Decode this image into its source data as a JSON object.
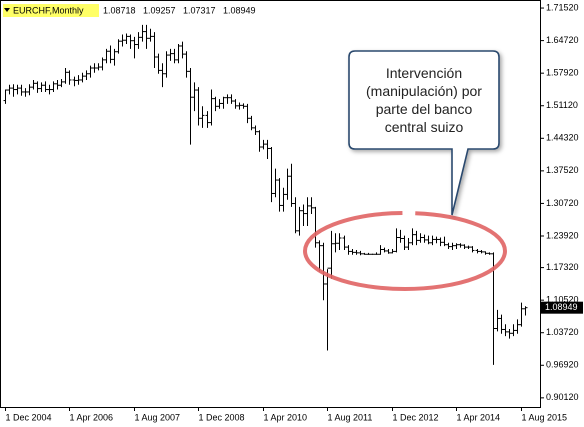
{
  "chart_data": {
    "type": "ohlc",
    "title": "EURCHF,Monthly",
    "annotation": "Intervención (manipulación) por parte del banco central suizo",
    "color": "#000000",
    "highlight_color": "#e06464",
    "categories": [
      "1 Dec 2004",
      null,
      null,
      null,
      null,
      null,
      null,
      null,
      null,
      null,
      null,
      null,
      null,
      null,
      null,
      null,
      "1 Apr 2006",
      null,
      null,
      null,
      null,
      null,
      null,
      null,
      null,
      null,
      null,
      null,
      null,
      null,
      null,
      null,
      "1 Aug 2007",
      null,
      null,
      null,
      null,
      null,
      null,
      null,
      null,
      null,
      null,
      null,
      null,
      null,
      null,
      null,
      "1 Dec 2008",
      null,
      null,
      null,
      null,
      null,
      null,
      null,
      null,
      null,
      null,
      null,
      null,
      null,
      null,
      null,
      "1 Apr 2010",
      null,
      null,
      null,
      null,
      null,
      null,
      null,
      null,
      null,
      null,
      null,
      null,
      null,
      null,
      null,
      "1 Aug 2011",
      null,
      null,
      null,
      null,
      null,
      null,
      null,
      null,
      null,
      null,
      null,
      null,
      null,
      null,
      null,
      "1 Dec 2012",
      null,
      null,
      null,
      null,
      null,
      null,
      null,
      null,
      null,
      null,
      null,
      null,
      null,
      null,
      null,
      "1 Apr 2014",
      null,
      null,
      null,
      null,
      null,
      null,
      null,
      null,
      null,
      null,
      null,
      null,
      null,
      null,
      null,
      "1 Aug 2015",
      null
    ],
    "open": [
      1.522,
      1.544,
      1.548,
      1.545,
      1.548,
      1.54,
      1.54,
      1.55,
      1.558,
      1.547,
      1.554,
      1.545,
      1.545,
      1.557,
      1.554,
      1.561,
      1.581,
      1.565,
      1.564,
      1.565,
      1.573,
      1.578,
      1.59,
      1.59,
      1.592,
      1.607,
      1.625,
      1.608,
      1.624,
      1.646,
      1.648,
      1.656,
      1.647,
      1.639,
      1.654,
      1.666,
      1.652,
      1.656,
      1.613,
      1.585,
      1.578,
      1.617,
      1.62,
      1.607,
      1.636,
      1.619,
      1.583,
      1.529,
      1.544,
      1.485,
      1.491,
      1.476,
      1.526,
      1.51,
      1.516,
      1.528,
      1.528,
      1.521,
      1.511,
      1.512,
      1.51,
      1.485,
      1.465,
      1.457,
      1.425,
      1.431,
      1.422,
      1.328,
      1.356,
      1.303,
      1.326,
      1.364,
      1.307,
      1.25,
      1.292,
      1.286,
      1.302,
      1.298,
      1.225,
      1.219,
      1.139,
      1.172,
      1.223,
      1.224,
      1.235,
      1.216,
      1.207,
      1.205,
      1.204,
      1.202,
      1.201,
      1.201,
      1.201,
      1.201,
      1.211,
      1.208,
      1.204,
      1.207,
      1.236,
      1.234,
      1.216,
      1.225,
      1.242,
      1.23,
      1.236,
      1.231,
      1.225,
      1.232,
      1.232,
      1.226,
      1.221,
      1.217,
      1.219,
      1.221,
      1.22,
      1.216,
      1.216,
      1.209,
      1.207,
      1.206,
      1.203,
      1.202,
      1.046,
      1.067,
      1.044,
      1.039,
      1.036,
      1.042,
      1.054,
      1.08718
    ],
    "high": [
      1.545,
      1.555,
      1.556,
      1.555,
      1.555,
      1.548,
      1.556,
      1.565,
      1.562,
      1.56,
      1.562,
      1.555,
      1.562,
      1.565,
      1.567,
      1.59,
      1.585,
      1.572,
      1.575,
      1.58,
      1.585,
      1.595,
      1.6,
      1.6,
      1.612,
      1.63,
      1.637,
      1.63,
      1.65,
      1.66,
      1.662,
      1.66,
      1.655,
      1.665,
      1.68,
      1.68,
      1.672,
      1.665,
      1.62,
      1.6,
      1.625,
      1.63,
      1.63,
      1.64,
      1.645,
      1.625,
      1.59,
      1.56,
      1.55,
      1.51,
      1.5,
      1.545,
      1.53,
      1.525,
      1.53,
      1.535,
      1.535,
      1.525,
      1.518,
      1.516,
      1.515,
      1.49,
      1.47,
      1.46,
      1.44,
      1.44,
      1.425,
      1.38,
      1.36,
      1.34,
      1.38,
      1.39,
      1.32,
      1.3,
      1.305,
      1.32,
      1.32,
      1.3,
      1.23,
      1.225,
      1.17,
      1.25,
      1.245,
      1.245,
      1.24,
      1.22,
      1.212,
      1.21,
      1.208,
      1.204,
      1.204,
      1.202,
      1.205,
      1.22,
      1.215,
      1.212,
      1.212,
      1.255,
      1.252,
      1.24,
      1.235,
      1.255,
      1.25,
      1.245,
      1.242,
      1.24,
      1.24,
      1.238,
      1.236,
      1.238,
      1.225,
      1.225,
      1.224,
      1.224,
      1.222,
      1.219,
      1.218,
      1.212,
      1.21,
      1.207,
      1.205,
      1.205,
      1.085,
      1.075,
      1.055,
      1.045,
      1.055,
      1.065,
      1.1,
      1.09257
    ],
    "low": [
      1.515,
      1.535,
      1.53,
      1.535,
      1.532,
      1.53,
      1.533,
      1.545,
      1.538,
      1.54,
      1.54,
      1.535,
      1.54,
      1.545,
      1.55,
      1.557,
      1.555,
      1.552,
      1.555,
      1.56,
      1.565,
      1.57,
      1.58,
      1.585,
      1.585,
      1.6,
      1.6,
      1.595,
      1.62,
      1.635,
      1.64,
      1.63,
      1.61,
      1.63,
      1.645,
      1.63,
      1.645,
      1.59,
      1.578,
      1.55,
      1.57,
      1.605,
      1.6,
      1.6,
      1.61,
      1.57,
      1.43,
      1.5,
      1.47,
      1.465,
      1.465,
      1.47,
      1.5,
      1.505,
      1.505,
      1.515,
      1.515,
      1.505,
      1.503,
      1.505,
      1.475,
      1.46,
      1.45,
      1.415,
      1.42,
      1.4,
      1.31,
      1.32,
      1.29,
      1.29,
      1.315,
      1.3,
      1.245,
      1.24,
      1.26,
      1.26,
      1.285,
      1.215,
      1.165,
      1.105,
      1.0,
      1.15,
      1.205,
      1.21,
      1.21,
      1.2,
      1.2,
      1.2,
      1.199,
      1.2,
      1.2,
      1.2,
      1.2,
      1.2,
      1.205,
      1.202,
      1.203,
      1.205,
      1.225,
      1.21,
      1.21,
      1.22,
      1.22,
      1.225,
      1.225,
      1.222,
      1.22,
      1.224,
      1.218,
      1.218,
      1.212,
      1.21,
      1.212,
      1.215,
      1.212,
      1.212,
      1.205,
      1.203,
      1.203,
      1.2,
      1.2,
      0.97,
      1.04,
      1.035,
      1.03,
      1.025,
      1.03,
      1.035,
      1.05,
      1.07317
    ],
    "close": [
      1.544,
      1.548,
      1.545,
      1.548,
      1.54,
      1.54,
      1.55,
      1.558,
      1.547,
      1.554,
      1.545,
      1.545,
      1.557,
      1.554,
      1.561,
      1.581,
      1.565,
      1.564,
      1.565,
      1.573,
      1.578,
      1.59,
      1.59,
      1.592,
      1.607,
      1.625,
      1.608,
      1.624,
      1.646,
      1.648,
      1.656,
      1.647,
      1.639,
      1.654,
      1.666,
      1.652,
      1.656,
      1.613,
      1.585,
      1.578,
      1.617,
      1.62,
      1.607,
      1.636,
      1.619,
      1.583,
      1.529,
      1.544,
      1.485,
      1.491,
      1.476,
      1.526,
      1.51,
      1.516,
      1.528,
      1.528,
      1.521,
      1.511,
      1.512,
      1.51,
      1.485,
      1.465,
      1.457,
      1.425,
      1.431,
      1.422,
      1.328,
      1.356,
      1.303,
      1.326,
      1.364,
      1.307,
      1.25,
      1.292,
      1.286,
      1.302,
      1.298,
      1.225,
      1.219,
      1.139,
      1.172,
      1.223,
      1.224,
      1.235,
      1.216,
      1.207,
      1.205,
      1.204,
      1.202,
      1.201,
      1.201,
      1.201,
      1.201,
      1.211,
      1.208,
      1.204,
      1.207,
      1.236,
      1.234,
      1.216,
      1.225,
      1.242,
      1.23,
      1.236,
      1.231,
      1.225,
      1.232,
      1.232,
      1.226,
      1.221,
      1.217,
      1.219,
      1.221,
      1.22,
      1.216,
      1.216,
      1.209,
      1.207,
      1.206,
      1.203,
      1.202,
      1.046,
      1.067,
      1.044,
      1.039,
      1.036,
      1.042,
      1.054,
      1.08718,
      1.08949
    ],
    "ylim": [
      0.88,
      1.732
    ],
    "yticks": [
      {
        "value": 1.7152,
        "label": "1.71520"
      },
      {
        "value": 1.6472,
        "label": "1.64720"
      },
      {
        "value": 1.5792,
        "label": "1.57920"
      },
      {
        "value": 1.5112,
        "label": "1.51120"
      },
      {
        "value": 1.4432,
        "label": "1.44320"
      },
      {
        "value": 1.3752,
        "label": "1.37520"
      },
      {
        "value": 1.3072,
        "label": "1.30720"
      },
      {
        "value": 1.2392,
        "label": "1.23920"
      },
      {
        "value": 1.1732,
        "label": "1.17320"
      },
      {
        "value": 1.1052,
        "label": "1.10520"
      },
      {
        "value": 1.0372,
        "label": "1.03720"
      },
      {
        "value": 0.9692,
        "label": "0.96920"
      },
      {
        "value": 0.9012,
        "label": "0.90120"
      }
    ],
    "grid": false
  }
}
